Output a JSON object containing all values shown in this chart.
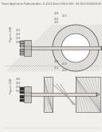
{
  "bg_color": "#f2f0ed",
  "header_text": "Patent Application Publication",
  "header_date": "Dec. 8, 2011",
  "header_sheet": "Sheet 198 of 206",
  "header_num": "US 2011/0301608 A1",
  "fig_top_label": "Figure 24B",
  "fig_bot_label": "Figure 24A",
  "text_color": "#666666",
  "line_color": "#888888",
  "dark_color": "#444444",
  "very_dark": "#222222",
  "bone_fill": "#e8e6e2",
  "plate_fill": "#d8d5d0",
  "block_fill": "#c8c5c0",
  "screw_dark": "#555555",
  "screw_light": "#aaaaaa"
}
